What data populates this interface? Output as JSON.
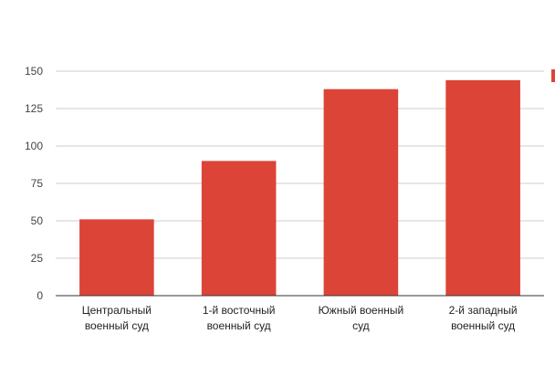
{
  "chart_data": {
    "type": "bar",
    "title": "",
    "xlabel": "",
    "ylabel": "",
    "categories": [
      [
        "Центральный",
        "военный суд"
      ],
      [
        "1-й восточный",
        "военный суд"
      ],
      [
        "Южный военный",
        "суд"
      ],
      [
        "2-й западный",
        "военный суд"
      ]
    ],
    "series": [
      {
        "color": "#dc4437",
        "values": [
          51,
          90,
          138,
          144
        ]
      }
    ],
    "ylim": [
      0,
      150
    ],
    "yticks": [
      0,
      25,
      50,
      75,
      100,
      125,
      150
    ],
    "grid": true,
    "legend": "right-edge-clipped"
  }
}
